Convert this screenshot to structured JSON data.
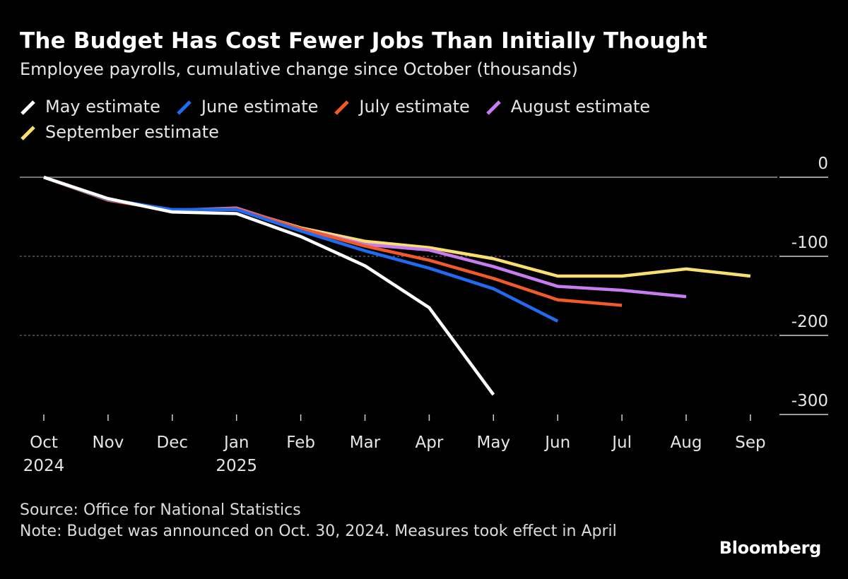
{
  "chart_data": {
    "type": "line",
    "title": "The Budget Has Cost Fewer Jobs Than Initially Thought",
    "subtitle": "Employee payrolls, cumulative change since October (thousands)",
    "x_labels": [
      [
        "Oct",
        "2024"
      ],
      [
        "Nov",
        ""
      ],
      [
        "Dec",
        ""
      ],
      [
        "Jan",
        "2025"
      ],
      [
        "Feb",
        ""
      ],
      [
        "Mar",
        ""
      ],
      [
        "Apr",
        ""
      ],
      [
        "May",
        ""
      ],
      [
        "Jun",
        ""
      ],
      [
        "Jul",
        ""
      ],
      [
        "Aug",
        ""
      ],
      [
        "Sep",
        ""
      ]
    ],
    "ylim": [
      -300,
      0
    ],
    "y_ticks": [
      0,
      -100,
      -200,
      -300
    ],
    "y_tick_labels": [
      "0",
      "-100",
      "-200",
      "-300"
    ],
    "series": [
      {
        "name": "May estimate",
        "color": "#ffffff",
        "values": [
          0,
          -27,
          -44,
          -46,
          -75,
          -112,
          -165,
          -275
        ]
      },
      {
        "name": "June estimate",
        "color": "#1f6cf2",
        "values": [
          0,
          -28,
          -41,
          -41,
          -68,
          -93,
          -115,
          -141,
          -182
        ]
      },
      {
        "name": "July estimate",
        "color": "#f25a2a",
        "values": [
          0,
          -29,
          -42,
          -40,
          -65,
          -87,
          -105,
          -128,
          -155,
          -162
        ]
      },
      {
        "name": "August estimate",
        "color": "#c97cf2",
        "values": [
          0,
          -28,
          -42,
          -39,
          -65,
          -85,
          -92,
          -113,
          -138,
          -143,
          -151
        ]
      },
      {
        "name": "September estimate",
        "color": "#f7e070",
        "values": [
          0,
          -28,
          -42,
          -40,
          -64,
          -81,
          -89,
          -103,
          -125,
          -125,
          -116,
          -125
        ]
      }
    ]
  },
  "footer": {
    "source": "Source: Office for National Statistics",
    "note": "Note: Budget was announced on Oct. 30, 2024. Measures took effect in April",
    "brand": "Bloomberg"
  }
}
